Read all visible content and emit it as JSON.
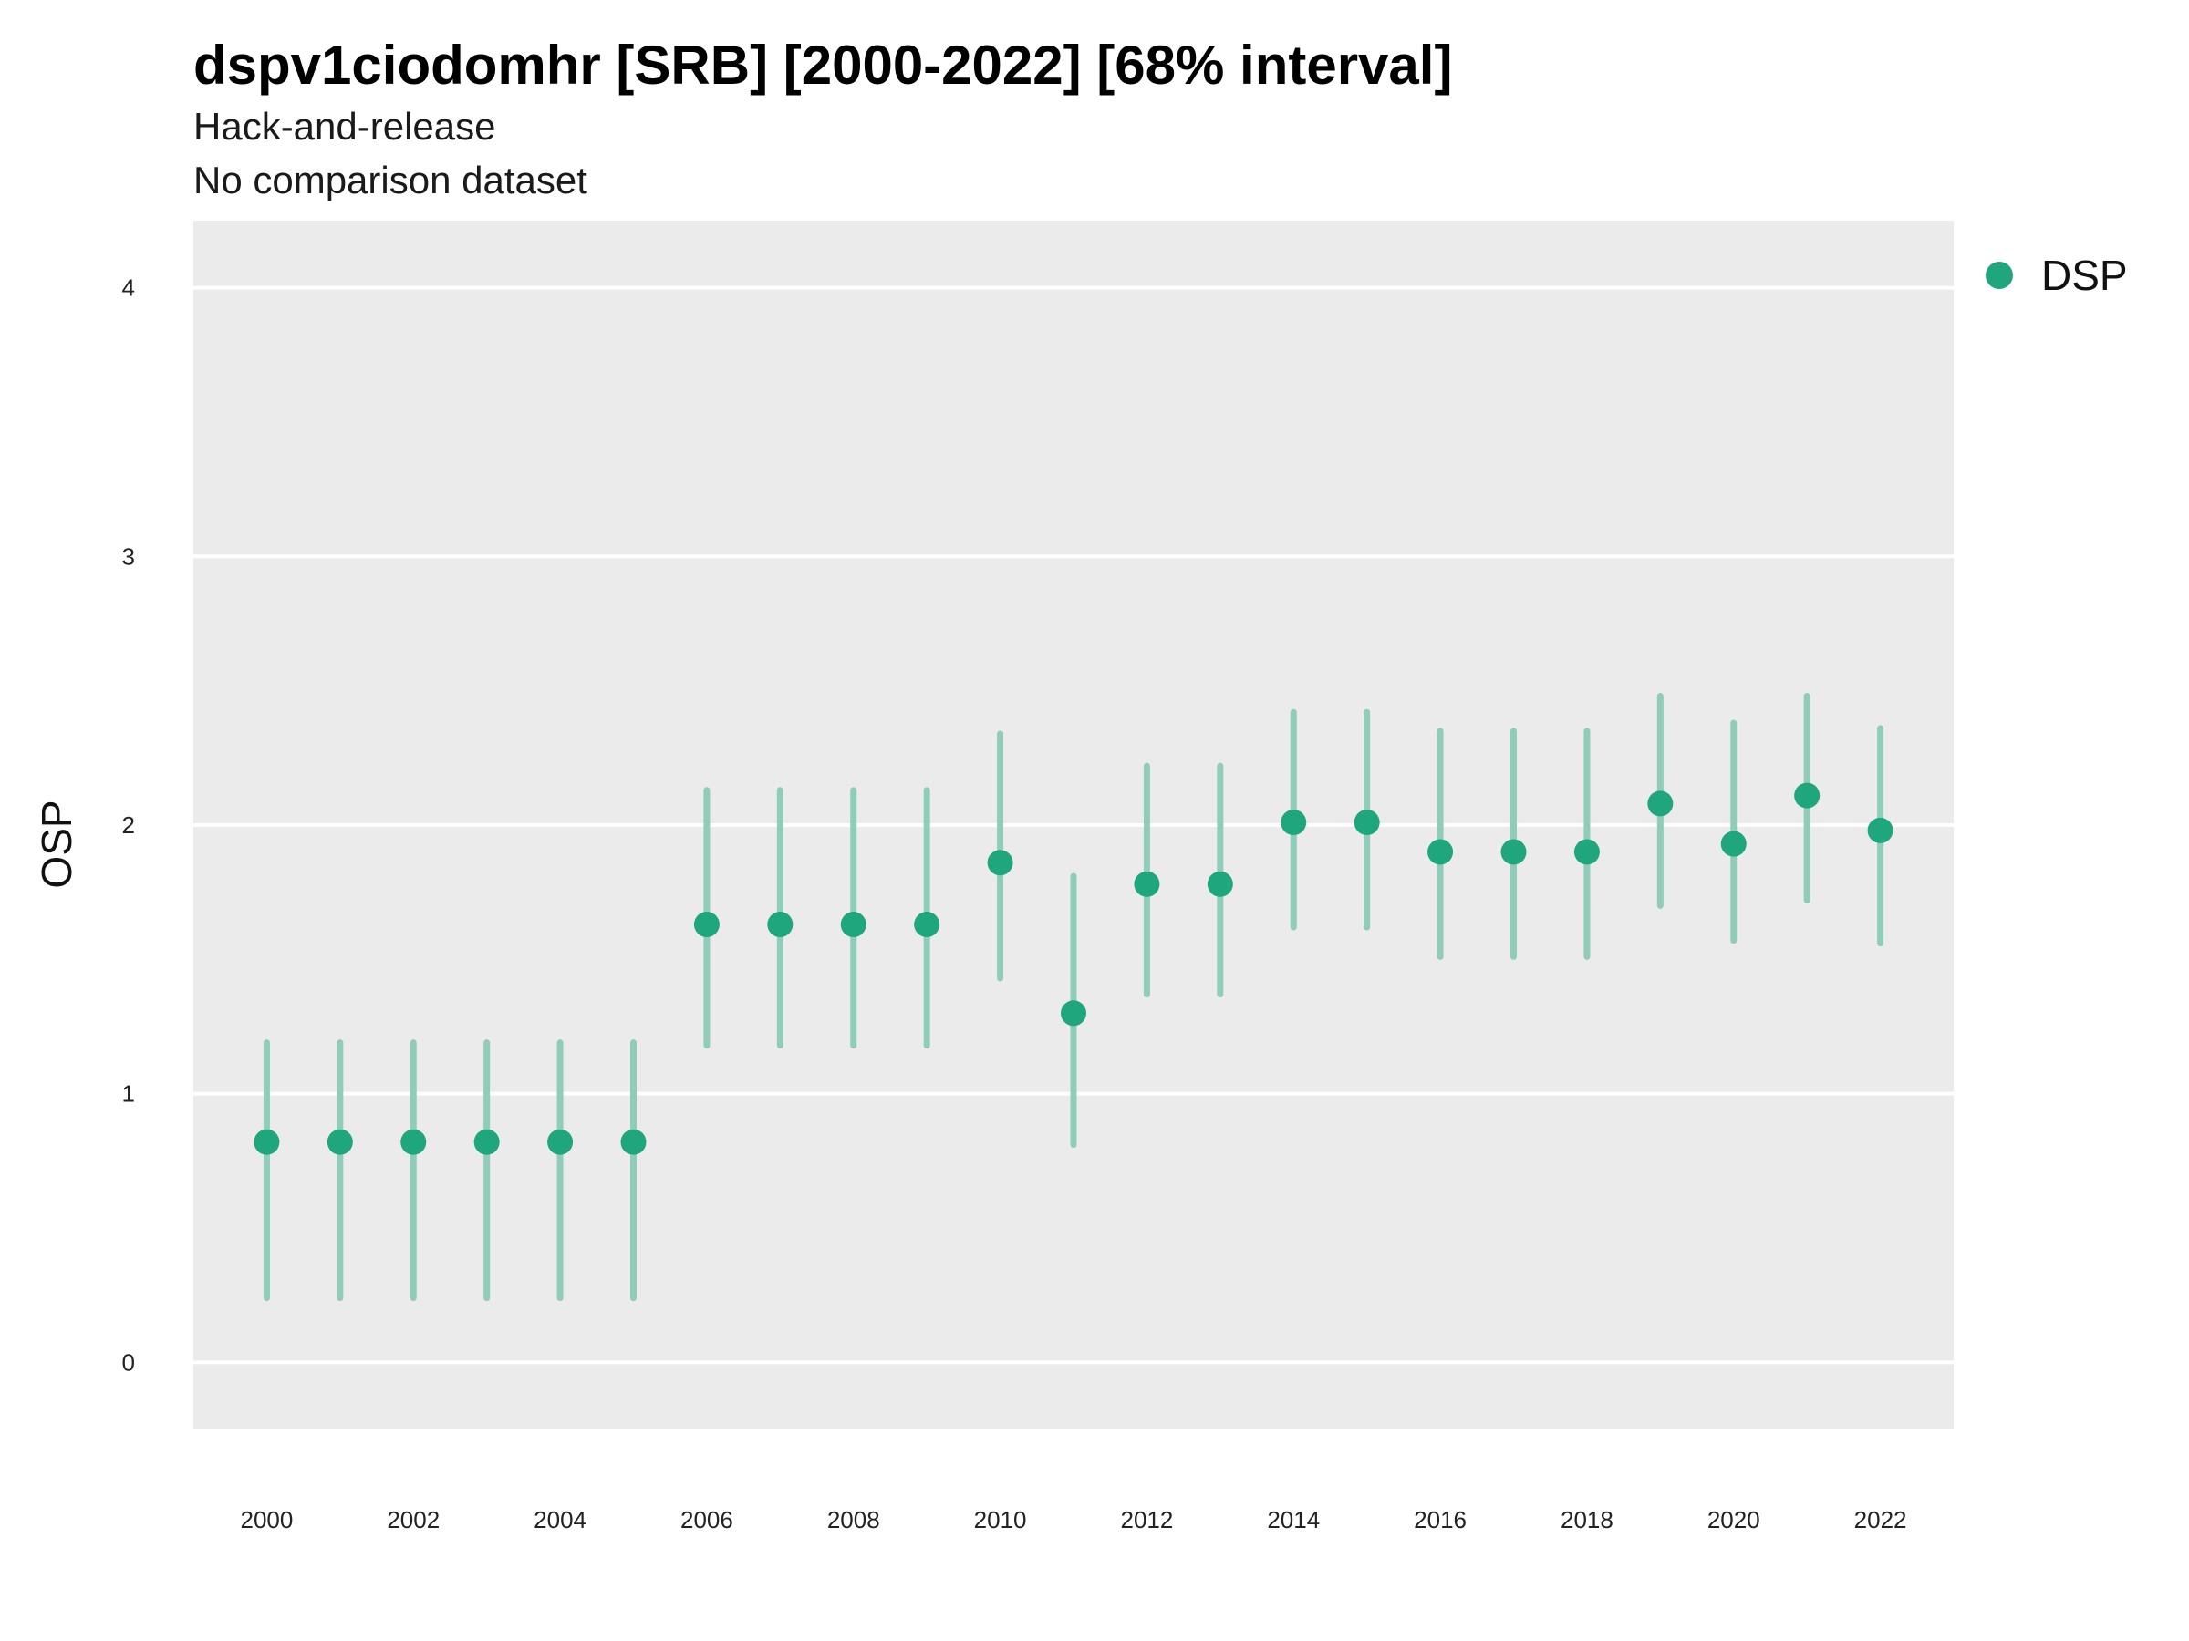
{
  "chart_data": {
    "type": "scatter",
    "title": "dspv1ciodomhr [SRB] [2000-2022] [68% interval]",
    "subtitle": "Hack-and-release",
    "subtitle2": "No comparison dataset",
    "xlabel": "",
    "ylabel": "OSP",
    "xlim": [
      1999,
      2023
    ],
    "ylim": [
      -0.25,
      4.25
    ],
    "x_ticks": [
      2000,
      2002,
      2004,
      2006,
      2008,
      2010,
      2012,
      2014,
      2016,
      2018,
      2020,
      2022
    ],
    "y_ticks": [
      0,
      1,
      2,
      3,
      4
    ],
    "grid": true,
    "legend_position": "top-right",
    "colors": {
      "point": "#1fa67d",
      "interval": "#8fcdb8",
      "panel": "#ebebeb",
      "grid": "#ffffff"
    },
    "series": [
      {
        "name": "DSP",
        "points": [
          {
            "x": 2000,
            "y": 0.82,
            "lo": 0.24,
            "hi": 1.19
          },
          {
            "x": 2001,
            "y": 0.82,
            "lo": 0.24,
            "hi": 1.19
          },
          {
            "x": 2002,
            "y": 0.82,
            "lo": 0.24,
            "hi": 1.19
          },
          {
            "x": 2003,
            "y": 0.82,
            "lo": 0.24,
            "hi": 1.19
          },
          {
            "x": 2004,
            "y": 0.82,
            "lo": 0.24,
            "hi": 1.19
          },
          {
            "x": 2005,
            "y": 0.82,
            "lo": 0.24,
            "hi": 1.19
          },
          {
            "x": 2006,
            "y": 1.63,
            "lo": 1.18,
            "hi": 2.13
          },
          {
            "x": 2007,
            "y": 1.63,
            "lo": 1.18,
            "hi": 2.13
          },
          {
            "x": 2008,
            "y": 1.63,
            "lo": 1.18,
            "hi": 2.13
          },
          {
            "x": 2009,
            "y": 1.63,
            "lo": 1.18,
            "hi": 2.13
          },
          {
            "x": 2010,
            "y": 1.86,
            "lo": 1.43,
            "hi": 2.34
          },
          {
            "x": 2011,
            "y": 1.3,
            "lo": 0.81,
            "hi": 1.81
          },
          {
            "x": 2012,
            "y": 1.78,
            "lo": 1.37,
            "hi": 2.22
          },
          {
            "x": 2013,
            "y": 1.78,
            "lo": 1.37,
            "hi": 2.22
          },
          {
            "x": 2014,
            "y": 2.01,
            "lo": 1.62,
            "hi": 2.42
          },
          {
            "x": 2015,
            "y": 2.01,
            "lo": 1.62,
            "hi": 2.42
          },
          {
            "x": 2016,
            "y": 1.9,
            "lo": 1.51,
            "hi": 2.35
          },
          {
            "x": 2017,
            "y": 1.9,
            "lo": 1.51,
            "hi": 2.35
          },
          {
            "x": 2018,
            "y": 1.9,
            "lo": 1.51,
            "hi": 2.35
          },
          {
            "x": 2019,
            "y": 2.08,
            "lo": 1.7,
            "hi": 2.48
          },
          {
            "x": 2020,
            "y": 1.93,
            "lo": 1.57,
            "hi": 2.38
          },
          {
            "x": 2021,
            "y": 2.11,
            "lo": 1.72,
            "hi": 2.48
          },
          {
            "x": 2022,
            "y": 1.98,
            "lo": 1.56,
            "hi": 2.36
          }
        ]
      }
    ]
  }
}
